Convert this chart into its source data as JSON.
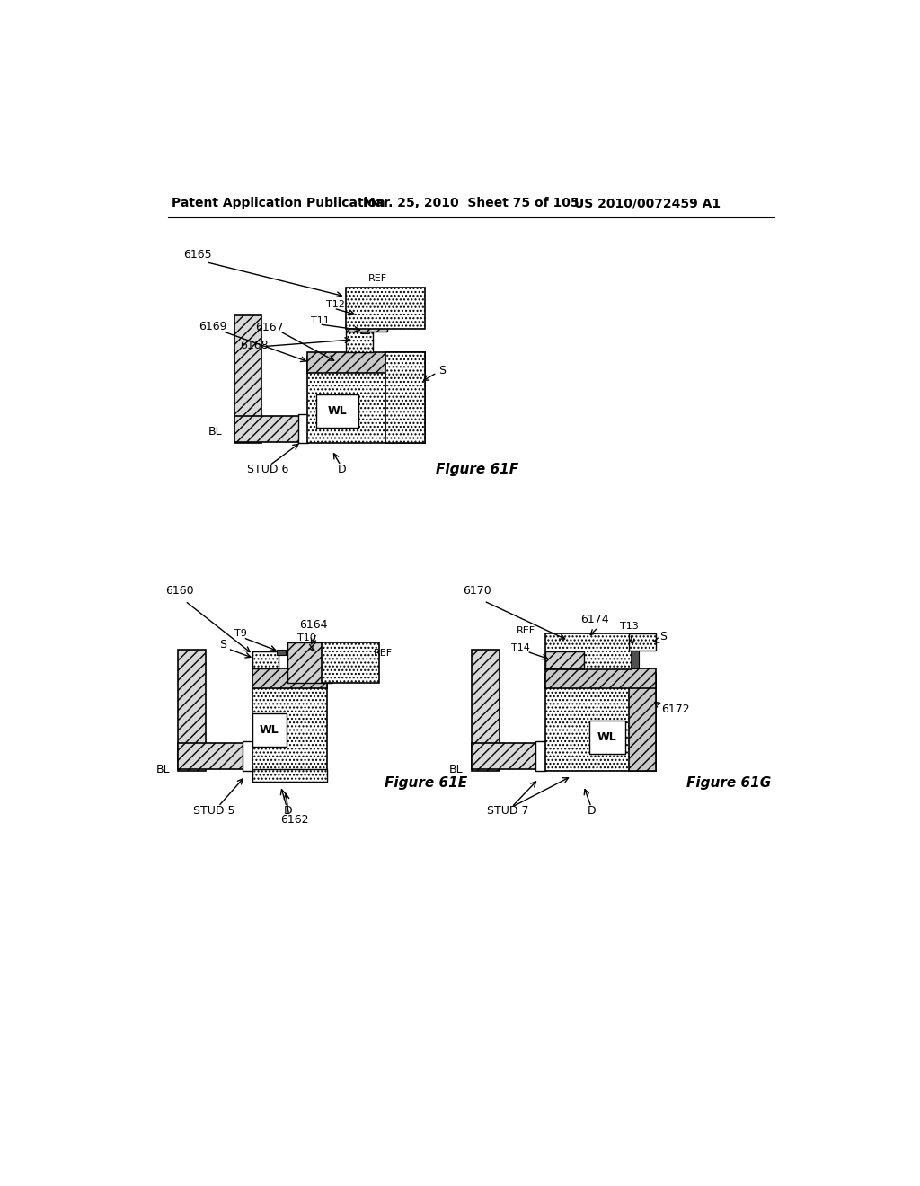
{
  "title_left": "Patent Application Publication",
  "title_mid": "Mar. 25, 2010  Sheet 75 of 105",
  "title_right": "US 2010/0072459 A1",
  "bg_color": "#ffffff",
  "fig_label_61F": "Figure 61F",
  "fig_label_61E": "Figure 61E",
  "fig_label_61G": "Figure 61G"
}
